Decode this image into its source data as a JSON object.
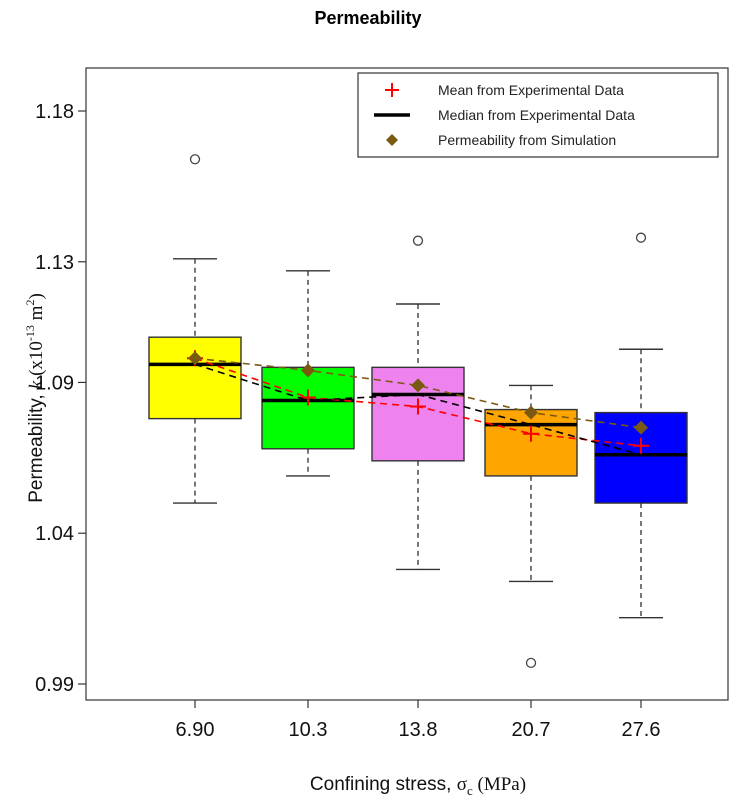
{
  "chart_data": {
    "type": "box",
    "title": "Permeability",
    "xlabel": "Confining stress, σc (MPa)",
    "ylabel": "Permeability, k (x10-13 m2)",
    "ylim": [
      0.99,
      1.19
    ],
    "yticks": [
      "1.18",
      "1.13",
      "1.09",
      "1.04",
      "0.99"
    ],
    "ytick_values": [
      1.18,
      1.13,
      1.09,
      1.04,
      0.99
    ],
    "categories": [
      "6.90",
      "10.3",
      "13.8",
      "20.7",
      "27.6"
    ],
    "grid": false,
    "legend_position": "top-right",
    "boxes": [
      {
        "category": "6.90",
        "color": "#ffff00",
        "whisker_low": 1.05,
        "q1": 1.078,
        "median": 1.096,
        "q3": 1.105,
        "whisker_high": 1.131,
        "outliers": [
          1.164
        ]
      },
      {
        "category": "10.3",
        "color": "#00ff00",
        "whisker_low": 1.059,
        "q1": 1.068,
        "median": 1.084,
        "q3": 1.095,
        "whisker_high": 1.127,
        "outliers": []
      },
      {
        "category": "13.8",
        "color": "#ee82ee",
        "whisker_low": 1.028,
        "q1": 1.064,
        "median": 1.086,
        "q3": 1.095,
        "whisker_high": 1.116,
        "outliers": [
          1.137
        ]
      },
      {
        "category": "20.7",
        "color": "#ffa500",
        "whisker_low": 1.024,
        "q1": 1.059,
        "median": 1.076,
        "q3": 1.081,
        "whisker_high": 1.089,
        "outliers": [
          0.997
        ]
      },
      {
        "category": "27.6",
        "color": "#0000ff",
        "whisker_low": 1.012,
        "q1": 1.05,
        "median": 1.066,
        "q3": 1.08,
        "whisker_high": 1.101,
        "outliers": [
          1.138
        ]
      }
    ],
    "series": [
      {
        "name": "Mean from Experimental Data",
        "marker": "plus",
        "color": "#ff0000",
        "line": "dashed",
        "values": [
          1.098,
          1.085,
          1.082,
          1.073,
          1.069
        ]
      },
      {
        "name": "Median from Experimental Data",
        "marker": "line",
        "color": "#000000",
        "line": "dashed",
        "values": [
          1.096,
          1.084,
          1.086,
          1.076,
          1.066
        ]
      },
      {
        "name": "Permeability from Simulation",
        "marker": "diamond",
        "color": "#7a5a10",
        "line": "dashed",
        "values": [
          1.098,
          1.094,
          1.089,
          1.08,
          1.075
        ]
      }
    ]
  }
}
